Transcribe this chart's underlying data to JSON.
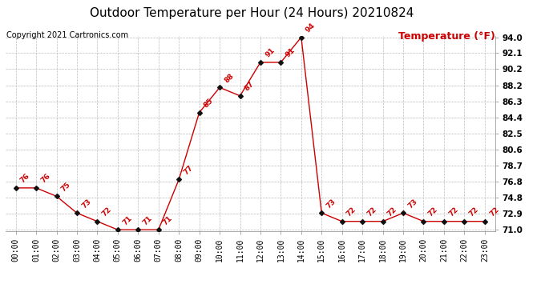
{
  "title": "Outdoor Temperature per Hour (24 Hours) 20210824",
  "copyright": "Copyright 2021 Cartronics.com",
  "ylabel": "Temperature (°F)",
  "hours": [
    0,
    1,
    2,
    3,
    4,
    5,
    6,
    7,
    8,
    9,
    10,
    11,
    12,
    13,
    14,
    15,
    16,
    17,
    18,
    19,
    20,
    21,
    22,
    23
  ],
  "temps": [
    76,
    76,
    75,
    73,
    72,
    71,
    71,
    71,
    77,
    85,
    88,
    87,
    91,
    91,
    94,
    73,
    72,
    72,
    72,
    73,
    72,
    72,
    72,
    72
  ],
  "ylim_min": 71.0,
  "ylim_max": 94.0,
  "yticks": [
    71.0,
    72.9,
    74.8,
    76.8,
    78.7,
    80.6,
    82.5,
    84.4,
    86.3,
    88.2,
    90.2,
    92.1,
    94.0
  ],
  "line_color": "#cc0000",
  "marker_color": "#111111",
  "label_color": "#cc0000",
  "bg_color": "#ffffff",
  "grid_color": "#bbbbbb",
  "title_fontsize": 11,
  "copyright_fontsize": 7,
  "ylabel_fontsize": 9,
  "label_fontsize": 6.5,
  "tick_fontsize": 7,
  "ytick_fontsize": 7.5
}
